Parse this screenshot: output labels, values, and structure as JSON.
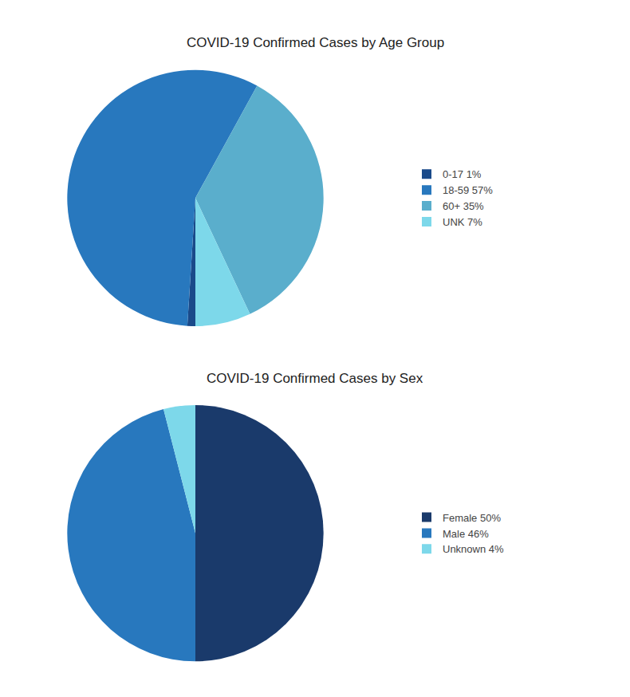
{
  "chart_data": [
    {
      "type": "pie",
      "title": "COVID-19 Confirmed Cases by Age Group",
      "categories": [
        "0-17 1%",
        "18-59 57%",
        "60+ 35%",
        "UNK 7%"
      ],
      "values": [
        1,
        57,
        35,
        7
      ],
      "colors": [
        "#1a4a8a",
        "#2878be",
        "#5aaecc",
        "#7dd8ea"
      ],
      "legend": "right"
    },
    {
      "type": "pie",
      "title": "COVID-19 Confirmed Cases by Sex",
      "categories": [
        "Female 50%",
        "Male 46%",
        "Unknown 4%"
      ],
      "values": [
        50,
        46,
        4
      ],
      "colors": [
        "#1a3a6b",
        "#2878be",
        "#7dd8ea"
      ],
      "legend": "right"
    }
  ]
}
